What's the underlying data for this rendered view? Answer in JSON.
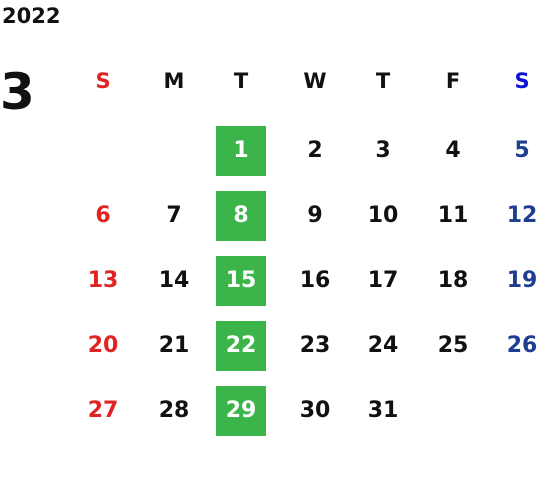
{
  "year": "2022",
  "month": "3",
  "weekdays": [
    "S",
    "M",
    "T",
    "W",
    "T",
    "F",
    "S"
  ],
  "weeks": [
    [
      null,
      null,
      1,
      2,
      3,
      4,
      5
    ],
    [
      6,
      7,
      8,
      9,
      10,
      11,
      12
    ],
    [
      13,
      14,
      15,
      16,
      17,
      18,
      19
    ],
    [
      20,
      21,
      22,
      23,
      24,
      25,
      26
    ],
    [
      27,
      28,
      29,
      30,
      31,
      null,
      null
    ]
  ]
}
